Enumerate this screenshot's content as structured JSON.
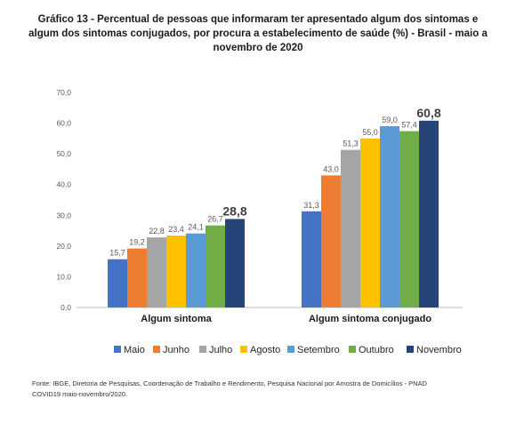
{
  "title_lines": [
    "Gráfico 13 - Percentual de pessoas que informaram ter apresentado algum dos sintomas e",
    "algum dos sintomas conjugados, por procura a estabelecimento de saúde (%) - Brasil - maio a",
    "novembro de 2020"
  ],
  "source_lines": [
    "Fonte: IBGE, Diretoria de Pesquisas, Coordenação de Trabalho e Rendimento, Pesquisa Nacional por Amostra de Domicílios - PNAD",
    "COVID19 maio-novembro/2020."
  ],
  "colors": {
    "Maio": "#4472c4",
    "Junho": "#ed7d31",
    "Julho": "#a5a5a5",
    "Agosto": "#ffc000",
    "Setembro": "#5b9bd5",
    "Outubro": "#70ad47",
    "Novembro": "#264478",
    "axis": "#bfbfbf",
    "text": "#595959"
  },
  "chart_data": {
    "type": "bar",
    "title": "Gráfico 13 - Percentual de pessoas que informaram ter apresentado algum dos sintomas e algum dos sintomas conjugados, por procura a estabelecimento de saúde (%) - Brasil - maio a novembro de 2020",
    "categories": [
      "Algum sintoma",
      "Algum sintoma conjugado"
    ],
    "series": [
      {
        "name": "Maio",
        "values": [
          15.7,
          31.3
        ],
        "labels": [
          "15,7",
          "31,3"
        ]
      },
      {
        "name": "Junho",
        "values": [
          19.2,
          43.0
        ],
        "labels": [
          "19,2",
          "43,0"
        ]
      },
      {
        "name": "Julho",
        "values": [
          22.8,
          51.3
        ],
        "labels": [
          "22,8",
          "51,3"
        ]
      },
      {
        "name": "Agosto",
        "values": [
          23.4,
          55.0
        ],
        "labels": [
          "23,4",
          "55,0"
        ]
      },
      {
        "name": "Setembro",
        "values": [
          24.1,
          59.0
        ],
        "labels": [
          "24,1",
          "59,0"
        ]
      },
      {
        "name": "Outubro",
        "values": [
          26.7,
          57.4
        ],
        "labels": [
          "26,7",
          "57,4"
        ]
      },
      {
        "name": "Novembro",
        "values": [
          28.8,
          60.8
        ],
        "labels": [
          "28,8",
          "60,8"
        ]
      }
    ],
    "ylim": [
      0,
      70
    ],
    "yticks": [
      0,
      10,
      20,
      30,
      40,
      50,
      60,
      70
    ],
    "ytick_labels": [
      "0,0",
      "10,0",
      "20,0",
      "30,0",
      "40,0",
      "50,0",
      "60,0",
      "70,0"
    ],
    "xlabel": "",
    "ylabel": "",
    "grid": false,
    "legend_position": "bottom"
  }
}
